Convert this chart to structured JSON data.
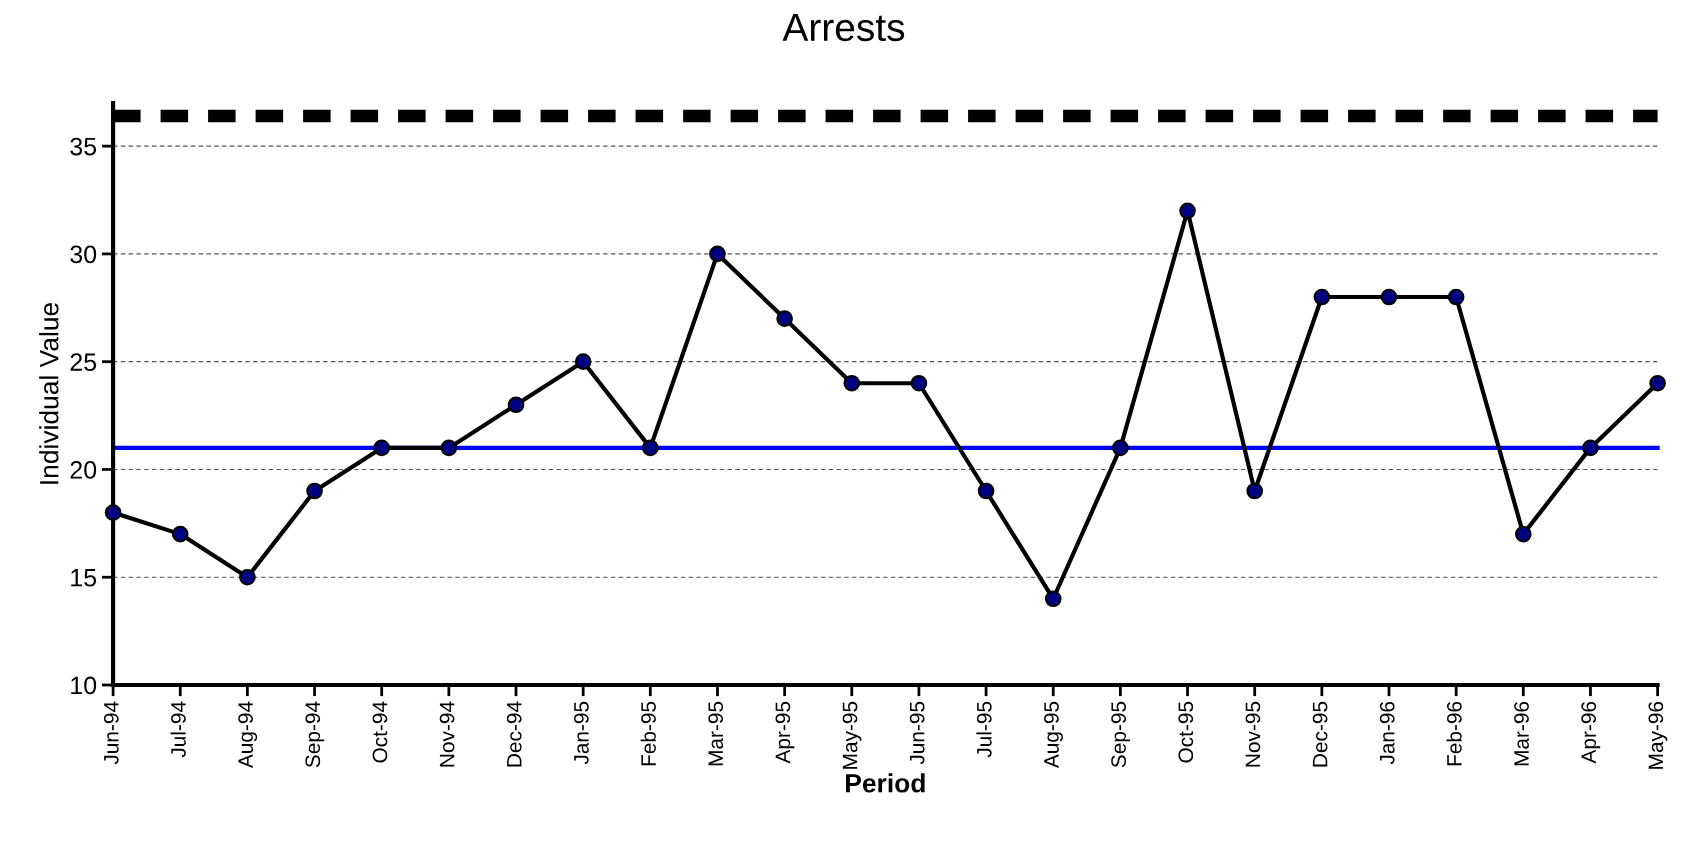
{
  "chart_data": {
    "type": "line",
    "title": "Arrests",
    "xlabel": "Period",
    "ylabel": "Individual Value",
    "categories": [
      "Jun-94",
      "Jul-94",
      "Aug-94",
      "Sep-94",
      "Oct-94",
      "Nov-94",
      "Dec-94",
      "Jan-95",
      "Feb-95",
      "Mar-95",
      "Apr-95",
      "May-95",
      "Jun-95",
      "Jul-95",
      "Aug-95",
      "Sep-95",
      "Oct-95",
      "Nov-95",
      "Dec-95",
      "Jan-96",
      "Feb-96",
      "Mar-96",
      "Apr-96",
      "May-96"
    ],
    "series": [
      {
        "color": "#000000",
        "colors": [
          "#000080",
          "#000080",
          "#000080",
          "#000080",
          "#000080",
          "#000080",
          "#000080",
          "#000080",
          "#000080",
          "#000080",
          "#000080",
          "#000080",
          "#000080",
          "#000080",
          "#000080",
          "#000080",
          "#000080",
          "#000080",
          "#000080",
          "#000080",
          "#000080",
          "#000080",
          "#000080",
          "#000080"
        ],
        "values": [
          18,
          17,
          15,
          19,
          21,
          21,
          23,
          25,
          21,
          30,
          27,
          24,
          24,
          19,
          14,
          21,
          32,
          19,
          28,
          28,
          28,
          17,
          21,
          24
        ]
      }
    ],
    "ylim": [
      10,
      37
    ],
    "yticks": [
      10,
      15,
      20,
      25,
      30,
      35
    ],
    "grid": "y",
    "marker": "circle",
    "line_style": "solid",
    "legend": false,
    "ref_lines": [
      {
        "axis": "y",
        "value": 21,
        "color": "#0000ff",
        "line_style": "solid"
      },
      {
        "axis": "y",
        "value": 36.4,
        "color": "#000000",
        "line_style": "dashed"
      }
    ]
  }
}
